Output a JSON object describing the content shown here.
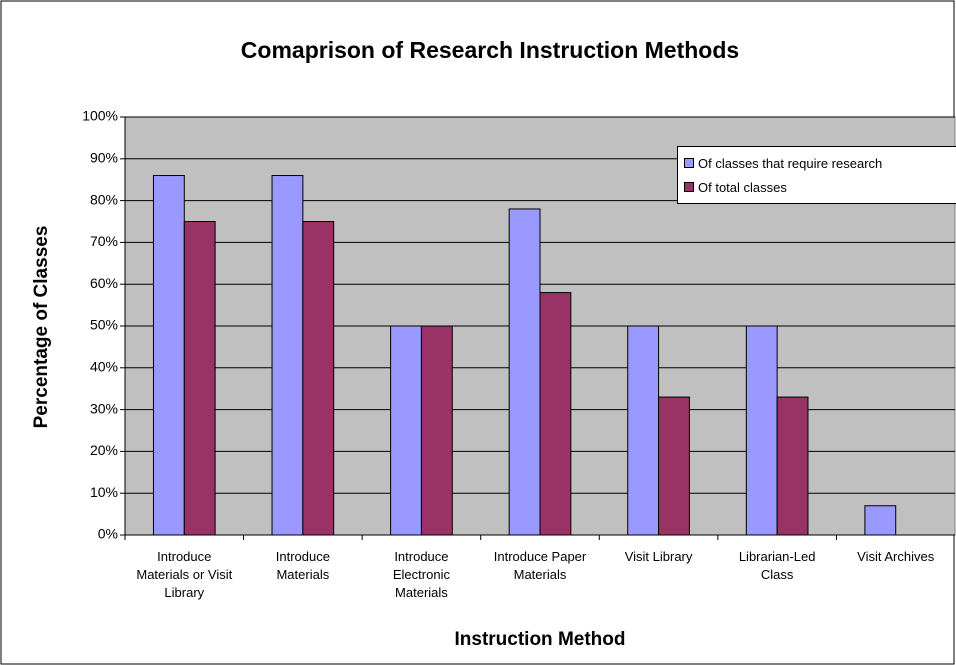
{
  "chart_data": {
    "type": "bar",
    "title": "Comaprison of Research Instruction Methods",
    "x_label": "Instruction Method",
    "y_label": "Percentage of Classes",
    "categories": [
      "Introduce Materials or Visit Library",
      "Introduce Materials",
      "Introduce Electronic Materials",
      "Introduce Paper Materials",
      "Visit Library",
      "Librarian-Led Class",
      "Visit Archives"
    ],
    "series": [
      {
        "name": "Of classes that require research",
        "color": "#9999ff",
        "values": [
          86,
          86,
          50,
          78,
          50,
          50,
          7
        ]
      },
      {
        "name": "Of total classes",
        "color": "#993366",
        "values": [
          75,
          75,
          50,
          58,
          33,
          33,
          0
        ]
      }
    ],
    "ylim": [
      0,
      100
    ],
    "yticks": [
      {
        "value": 0,
        "label": "0%"
      },
      {
        "value": 10,
        "label": "10%"
      },
      {
        "value": 20,
        "label": "20%"
      },
      {
        "value": 30,
        "label": "30%"
      },
      {
        "value": 40,
        "label": "40%"
      },
      {
        "value": 50,
        "label": "50%"
      },
      {
        "value": 60,
        "label": "60%"
      },
      {
        "value": 70,
        "label": "70%"
      },
      {
        "value": 80,
        "label": "80%"
      },
      {
        "value": 90,
        "label": "90%"
      },
      {
        "value": 100,
        "label": "100%"
      }
    ],
    "grid": true,
    "legend": "top-right"
  }
}
